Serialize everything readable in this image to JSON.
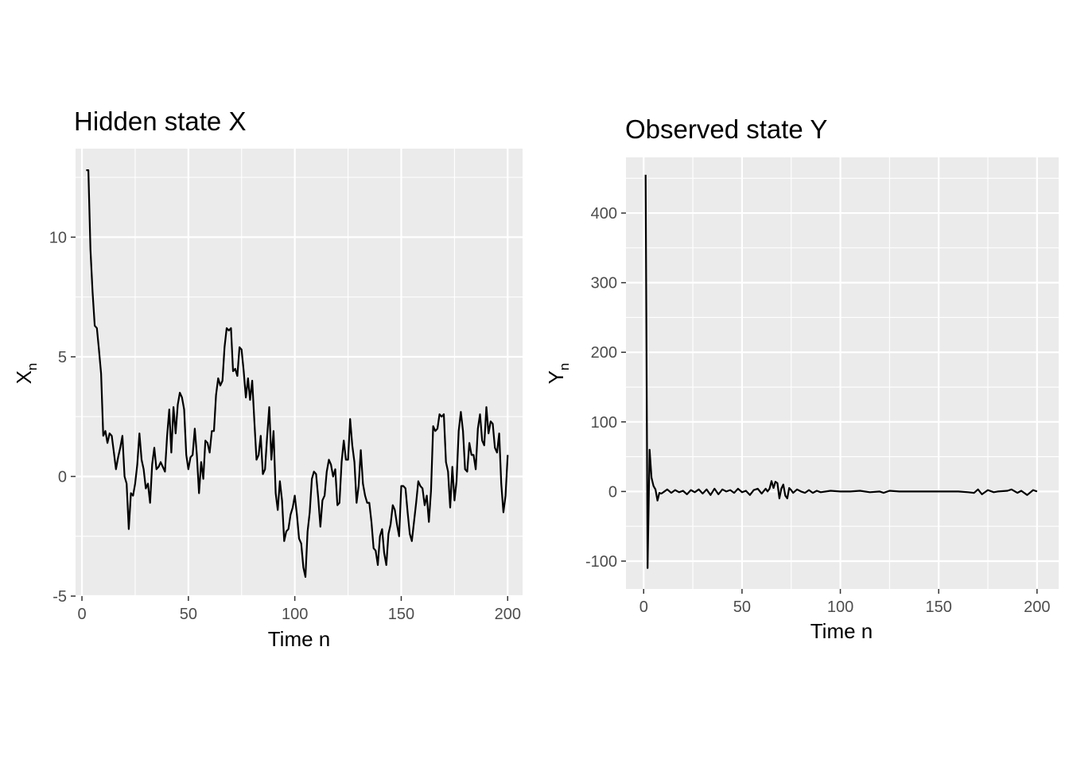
{
  "chart_data": [
    {
      "type": "line",
      "title": "Hidden state X",
      "xlabel": "Time n",
      "ylabel": "X",
      "ylabel_sub": "n",
      "xlim": [
        -3,
        207
      ],
      "ylim": [
        -5,
        13.7
      ],
      "xticks": [
        0,
        50,
        100,
        150,
        200
      ],
      "yticks": [
        -5,
        0,
        5,
        10
      ],
      "grid": true,
      "series": [
        {
          "color": "#000000",
          "x": [
            2,
            3,
            4,
            5,
            6,
            7,
            8,
            9,
            10,
            11,
            12,
            13,
            14,
            15,
            16,
            17,
            18,
            19,
            20,
            21,
            22,
            23,
            24,
            25,
            26,
            27,
            28,
            29,
            30,
            31,
            32,
            33,
            34,
            35,
            36,
            37,
            38,
            39,
            40,
            41,
            42,
            43,
            44,
            45,
            46,
            47,
            48,
            49,
            50,
            51,
            52,
            53,
            54,
            55,
            56,
            57,
            58,
            59,
            60,
            61,
            62,
            63,
            64,
            65,
            66,
            67,
            68,
            69,
            70,
            71,
            72,
            73,
            74,
            75,
            76,
            77,
            78,
            79,
            80,
            81,
            82,
            83,
            84,
            85,
            86,
            87,
            88,
            89,
            90,
            91,
            92,
            93,
            94,
            95,
            96,
            97,
            98,
            99,
            100,
            101,
            102,
            103,
            104,
            105,
            106,
            107,
            108,
            109,
            110,
            111,
            112,
            113,
            114,
            115,
            116,
            117,
            118,
            119,
            120,
            121,
            122,
            123,
            124,
            125,
            126,
            127,
            128,
            129,
            130,
            131,
            132,
            133,
            134,
            135,
            136,
            137,
            138,
            139,
            140,
            141,
            142,
            143,
            144,
            145,
            146,
            147,
            148,
            149,
            150,
            151,
            152,
            153,
            154,
            155,
            156,
            157,
            158,
            159,
            160,
            161,
            162,
            163,
            164,
            165,
            166,
            167,
            168,
            169,
            170,
            171,
            172,
            173,
            174,
            175,
            176,
            177,
            178,
            179,
            180,
            181,
            182,
            183,
            184,
            185,
            186,
            187,
            188,
            189,
            190,
            191,
            192,
            193,
            194,
            195,
            196,
            197,
            198,
            199,
            200
          ],
          "y": [
            12.8,
            12.8,
            9.5,
            7.7,
            6.3,
            6.2,
            5.3,
            4.3,
            1.7,
            1.9,
            1.4,
            1.8,
            1.7,
            1.0,
            0.3,
            0.8,
            1.2,
            1.7,
            0.0,
            -0.3,
            -2.2,
            -0.7,
            -0.8,
            -0.3,
            0.5,
            1.8,
            0.7,
            0.3,
            -0.5,
            -0.3,
            -1.1,
            0.5,
            1.2,
            0.3,
            0.4,
            0.6,
            0.4,
            0.2,
            1.7,
            2.8,
            1.0,
            2.9,
            1.8,
            3.0,
            3.5,
            3.3,
            2.8,
            0.9,
            0.3,
            0.8,
            0.9,
            2.0,
            0.9,
            -0.7,
            0.6,
            -0.1,
            1.5,
            1.4,
            1.0,
            1.9,
            1.9,
            3.4,
            4.1,
            3.8,
            4.0,
            5.4,
            6.2,
            6.1,
            6.2,
            4.4,
            4.5,
            4.2,
            5.4,
            5.3,
            4.4,
            3.3,
            4.1,
            3.2,
            4.0,
            2.3,
            0.7,
            0.9,
            1.7,
            0.1,
            0.3,
            1.7,
            2.9,
            0.7,
            1.9,
            -0.7,
            -1.4,
            -0.2,
            -1.0,
            -2.7,
            -2.3,
            -2.2,
            -1.6,
            -1.3,
            -0.8,
            -1.6,
            -2.6,
            -2.8,
            -3.8,
            -4.2,
            -2.3,
            -1.5,
            -0.1,
            0.2,
            0.1,
            -0.9,
            -2.1,
            -1.0,
            -0.8,
            0.2,
            0.7,
            0.5,
            0.0,
            0.3,
            -1.2,
            -1.1,
            0.6,
            1.5,
            0.7,
            0.7,
            2.4,
            1.3,
            0.6,
            -1.1,
            -0.4,
            1.1,
            -0.3,
            -0.8,
            -1.1,
            -1.1,
            -1.9,
            -3.0,
            -3.1,
            -3.7,
            -2.5,
            -2.2,
            -3.2,
            -3.7,
            -2.4,
            -2.0,
            -1.2,
            -1.4,
            -2.0,
            -2.5,
            -0.4,
            -0.4,
            -0.5,
            -1.5,
            -2.4,
            -2.7,
            -1.9,
            -1.1,
            -0.2,
            -0.4,
            -0.5,
            -1.2,
            -0.8,
            -1.9,
            -0.6,
            2.1,
            1.9,
            2.0,
            2.6,
            2.5,
            2.6,
            0.6,
            0.2,
            -1.3,
            0.4,
            -1.0,
            -0.2,
            1.9,
            2.7,
            1.9,
            0.3,
            0.2,
            1.4,
            0.9,
            0.9,
            0.3,
            2.0,
            2.6,
            1.5,
            1.3,
            2.9,
            1.8,
            2.3,
            2.2,
            1.2,
            1.0,
            1.8,
            -0.3,
            -1.5,
            -0.8,
            0.9
          ]
        }
      ]
    },
    {
      "type": "line",
      "title": "Observed state Y",
      "xlabel": "Time n",
      "ylabel": "Y",
      "ylabel_sub": "n",
      "xlim": [
        -9,
        211
      ],
      "ylim": [
        -140,
        480
      ],
      "xticks": [
        0,
        50,
        100,
        150,
        200
      ],
      "yticks": [
        -100,
        0,
        100,
        200,
        300,
        400
      ],
      "grid": true,
      "series": [
        {
          "color": "#000000",
          "x": [
            1,
            2,
            3,
            4,
            5,
            6,
            7,
            8,
            9,
            10,
            12,
            14,
            16,
            18,
            20,
            22,
            24,
            26,
            28,
            30,
            32,
            34,
            36,
            38,
            40,
            42,
            44,
            46,
            48,
            50,
            52,
            54,
            56,
            58,
            60,
            62,
            63,
            64,
            65,
            66,
            67,
            68,
            69,
            70,
            71,
            72,
            73,
            74,
            75,
            76,
            78,
            80,
            82,
            84,
            86,
            88,
            90,
            95,
            100,
            105,
            110,
            115,
            120,
            122,
            125,
            130,
            135,
            140,
            145,
            150,
            155,
            160,
            165,
            168,
            170,
            172,
            175,
            178,
            180,
            185,
            187,
            190,
            192,
            195,
            198,
            200
          ],
          "y": [
            455,
            -110,
            60,
            20,
            8,
            3,
            -13,
            -2,
            -3,
            -1,
            3,
            -2,
            2,
            -1,
            1,
            -4,
            2,
            -1,
            3,
            -3,
            3,
            -5,
            4,
            -4,
            3,
            0,
            2,
            -2,
            4,
            -1,
            1,
            -5,
            2,
            4,
            -3,
            4,
            0,
            4,
            15,
            5,
            14,
            12,
            -10,
            4,
            10,
            -6,
            -10,
            5,
            2,
            -2,
            3,
            0,
            -2,
            2,
            -2,
            1,
            -1,
            1,
            0,
            0,
            1,
            -1,
            0,
            -2,
            1,
            0,
            0,
            0,
            0,
            0,
            0,
            0,
            -1,
            -2,
            3,
            -4,
            2,
            -1,
            0,
            1,
            3,
            -2,
            1,
            -5,
            2,
            0
          ]
        }
      ]
    }
  ]
}
